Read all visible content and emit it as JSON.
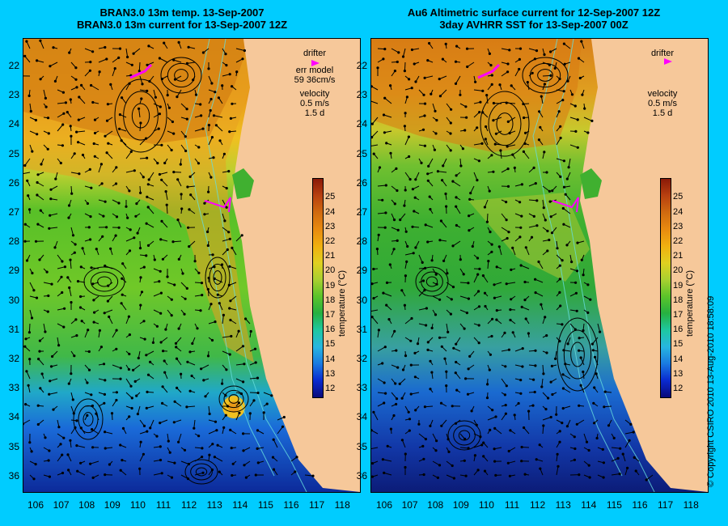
{
  "left_panel": {
    "title_line1": "BRAN3.0 13m temp. 13-Sep-2007",
    "title_line2": "BRAN3.0 13m current for 13-Sep-2007 12Z",
    "legend": {
      "drifter": "drifter",
      "err_line1": "err model",
      "err_line2": "59 36cm/s",
      "velocity": "velocity",
      "speed": "0.5 m/s",
      "duration": "1.5 d"
    }
  },
  "right_panel": {
    "title_line1": "Au6 Altimetric surface current for 12-Sep-2007 12Z",
    "title_line2": "3day AVHRR SST for 13-Sep-2007 00Z",
    "legend": {
      "drifter": "drifter",
      "velocity": "velocity",
      "speed": "0.5 m/s",
      "duration": "1.5 d"
    }
  },
  "colorbar": {
    "label": "temperature (°C)",
    "ticks": [
      "12",
      "13",
      "14",
      "15",
      "16",
      "17",
      "18",
      "19",
      "20",
      "21",
      "22",
      "23",
      "24",
      "25"
    ],
    "colors": [
      "#0a0a7a",
      "#0a2ad0",
      "#1a7ae0",
      "#27b6e0",
      "#1ec8a0",
      "#26b040",
      "#5cc42a",
      "#a8d030",
      "#e0d020",
      "#f0b010",
      "#e88a10",
      "#d06a10",
      "#b84010",
      "#8a1a08"
    ]
  },
  "latitude_ticks": [
    "22",
    "23",
    "24",
    "25",
    "26",
    "27",
    "28",
    "29",
    "30",
    "31",
    "32",
    "33",
    "34",
    "35",
    "36"
  ],
  "longitude_ticks": [
    "106",
    "107",
    "108",
    "109",
    "110",
    "111",
    "112",
    "113",
    "114",
    "115",
    "116",
    "117",
    "118"
  ],
  "copyright": "© Copyright CSIRO 2010    13-Aug-2010 18:58:09",
  "colors": {
    "background": "#00ccff",
    "land": "#f6c89a",
    "drifter": "#ff00ff",
    "contour": "#66dddd",
    "arrow": "#000000"
  }
}
